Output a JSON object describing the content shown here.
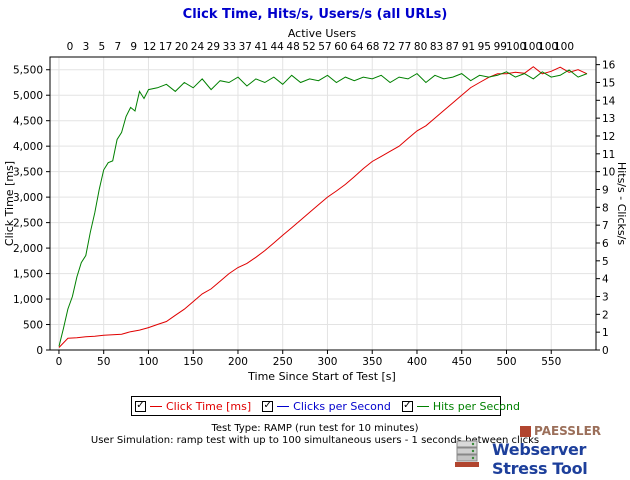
{
  "chart_data": {
    "type": "line",
    "title": "Click Time, Hits/s, Users/s (all URLs)",
    "xlabel": "Time Since Start of Test [s]",
    "ylabel_left": "Click Time [ms]",
    "ylabel_right": "Hits/s - Clicks/s",
    "x2label": "Active Users",
    "xlim": [
      -10,
      600
    ],
    "ylim_left": [
      0,
      5750
    ],
    "ylim_right": [
      0,
      16.428
    ],
    "x_ticks": [
      0,
      50,
      100,
      150,
      200,
      250,
      300,
      350,
      400,
      450,
      500,
      550
    ],
    "y_left_ticks": [
      "0",
      "500",
      "1,000",
      "1,500",
      "2,000",
      "2,500",
      "3,000",
      "3,500",
      "4,000",
      "4,500",
      "5,000",
      "5,500"
    ],
    "y_right_ticks": [
      0,
      1,
      2,
      3,
      4,
      5,
      6,
      7,
      8,
      9,
      10,
      11,
      12,
      13,
      14,
      15,
      16
    ],
    "top_ticks": [
      "0",
      "3",
      "5",
      "7",
      "9",
      "12",
      "17",
      "20",
      "24",
      "29",
      "33",
      "37",
      "41",
      "44",
      "48",
      "52",
      "57",
      "60",
      "64",
      "68",
      "72",
      "77",
      "80",
      "83",
      "87",
      "91",
      "95",
      "99",
      "100",
      "100",
      "100",
      "100"
    ],
    "grid": true,
    "legend_position": "bottom",
    "series": [
      {
        "name": "Click Time [ms]",
        "color": "#e00000",
        "axis": "left",
        "x": [
          0,
          10,
          20,
          30,
          40,
          50,
          60,
          70,
          80,
          90,
          100,
          110,
          120,
          130,
          140,
          150,
          160,
          170,
          180,
          190,
          200,
          210,
          220,
          230,
          240,
          250,
          260,
          270,
          280,
          290,
          300,
          310,
          320,
          330,
          340,
          350,
          360,
          370,
          380,
          390,
          400,
          410,
          420,
          430,
          440,
          450,
          460,
          470,
          480,
          490,
          500,
          510,
          520,
          530,
          540,
          550,
          560,
          570,
          580,
          590
        ],
        "y": [
          50,
          230,
          240,
          260,
          270,
          290,
          300,
          310,
          360,
          390,
          440,
          500,
          560,
          680,
          800,
          950,
          1100,
          1200,
          1350,
          1500,
          1620,
          1700,
          1820,
          1950,
          2100,
          2250,
          2400,
          2550,
          2700,
          2850,
          3000,
          3120,
          3250,
          3400,
          3560,
          3700,
          3800,
          3900,
          4000,
          4150,
          4300,
          4400,
          4550,
          4700,
          4850,
          5000,
          5150,
          5250,
          5350,
          5420,
          5420,
          5450,
          5430,
          5560,
          5420,
          5470,
          5550,
          5450,
          5500,
          5420
        ]
      },
      {
        "name": "Clicks per Second",
        "color": "#0000cc",
        "axis": "right",
        "x": [],
        "y": []
      },
      {
        "name": "Hits per Second",
        "color": "#008000",
        "axis": "right",
        "x": [
          0,
          5,
          10,
          15,
          20,
          25,
          30,
          35,
          40,
          45,
          50,
          55,
          60,
          65,
          70,
          75,
          80,
          85,
          90,
          95,
          100,
          110,
          120,
          130,
          140,
          150,
          160,
          170,
          180,
          190,
          200,
          210,
          220,
          230,
          240,
          250,
          260,
          270,
          280,
          290,
          300,
          310,
          320,
          330,
          340,
          350,
          360,
          370,
          380,
          390,
          400,
          410,
          420,
          430,
          440,
          450,
          460,
          470,
          480,
          490,
          500,
          510,
          520,
          530,
          540,
          550,
          560,
          570,
          580,
          590
        ],
        "y": [
          0.2,
          1.2,
          2.3,
          3.0,
          4.1,
          4.9,
          5.3,
          6.6,
          7.7,
          9.0,
          10.1,
          10.5,
          10.6,
          11.8,
          12.2,
          13.1,
          13.6,
          13.4,
          14.5,
          14.1,
          14.6,
          14.7,
          14.9,
          14.5,
          15.0,
          14.7,
          15.2,
          14.6,
          15.1,
          15.0,
          15.3,
          14.8,
          15.2,
          15.0,
          15.3,
          14.9,
          15.4,
          15.0,
          15.2,
          15.1,
          15.4,
          15.0,
          15.3,
          15.1,
          15.3,
          15.2,
          15.4,
          15.0,
          15.3,
          15.2,
          15.5,
          15.0,
          15.4,
          15.2,
          15.3,
          15.5,
          15.1,
          15.4,
          15.3,
          15.4,
          15.6,
          15.3,
          15.5,
          15.2,
          15.6,
          15.3,
          15.4,
          15.7,
          15.3,
          15.5
        ]
      }
    ]
  },
  "legend": {
    "items": [
      {
        "label": "Click Time [ms]",
        "color": "#e00000",
        "checked": "✓"
      },
      {
        "label": "Clicks per Second",
        "color": "#0000cc",
        "checked": "✓"
      },
      {
        "label": "Hits per Second",
        "color": "#008000",
        "checked": "✓"
      }
    ]
  },
  "footer": {
    "test_type": "Test Type: RAMP (run test for 10 minutes)",
    "simulation": "User Simulation: ramp test with up to 100 simultaneous users - 1 seconds between clicks"
  },
  "brand": {
    "company": "PAESSLER",
    "product": "Webserver Stress Tool",
    "logo_icon": "server-stack-icon"
  }
}
